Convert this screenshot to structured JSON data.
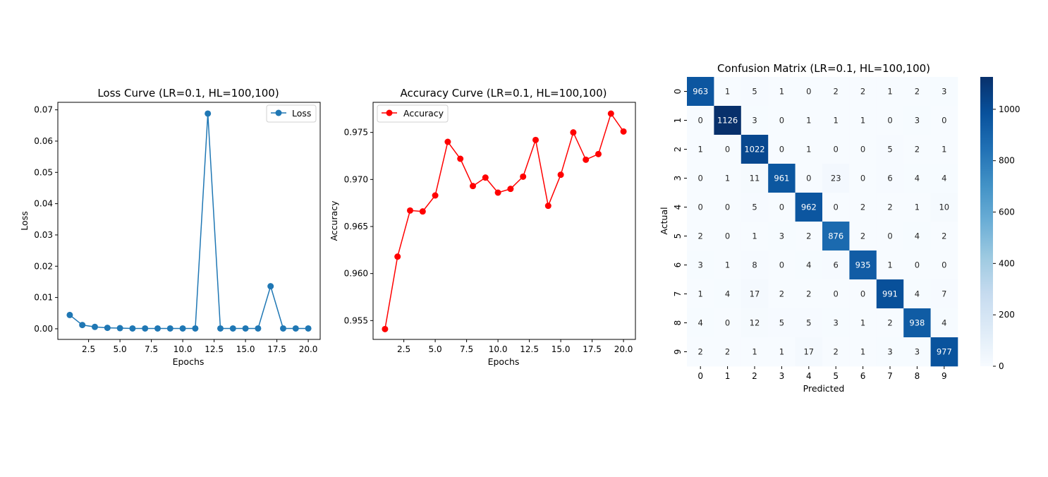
{
  "chart_data": [
    {
      "type": "line",
      "title": "Loss Curve (LR=0.1, HL=100,100)",
      "xlabel": "Epochs",
      "ylabel": "Loss",
      "xlim": [
        0.05,
        20.95
      ],
      "ylim": [
        -0.0034,
        0.0724
      ],
      "xticks": [
        2.5,
        5.0,
        7.5,
        10.0,
        12.5,
        15.0,
        17.5,
        20.0
      ],
      "xtick_labels": [
        "2.5",
        "5.0",
        "7.5",
        "10.0",
        "12.5",
        "15.0",
        "17.5",
        "20.0"
      ],
      "yticks": [
        0.0,
        0.01,
        0.02,
        0.03,
        0.04,
        0.05,
        0.06,
        0.07
      ],
      "ytick_labels": [
        "0.00",
        "0.01",
        "0.02",
        "0.03",
        "0.04",
        "0.05",
        "0.06",
        "0.07"
      ],
      "x": [
        1,
        2,
        3,
        4,
        5,
        6,
        7,
        8,
        9,
        10,
        11,
        12,
        13,
        14,
        15,
        16,
        17,
        18,
        19,
        20
      ],
      "series": [
        {
          "name": "Loss",
          "color": "#1f77b4",
          "values": [
            0.0044,
            0.0012,
            0.0006,
            0.0003,
            0.0002,
            0.0001,
            0.0001,
            0.0001,
            0.0001,
            0.0001,
            0.0001,
            0.0688,
            0.0001,
            0.0001,
            0.0001,
            0.0001,
            0.0136,
            0.0001,
            0.0001,
            0.0001
          ]
        }
      ],
      "legend": "upper right",
      "grid": false
    },
    {
      "type": "line",
      "title": "Accuracy Curve (LR=0.1, HL=100,100)",
      "xlabel": "Epochs",
      "ylabel": "Accuracy",
      "xlim": [
        0.05,
        20.95
      ],
      "ylim": [
        0.953,
        0.9782
      ],
      "xticks": [
        2.5,
        5.0,
        7.5,
        10.0,
        12.5,
        15.0,
        17.5,
        20.0
      ],
      "xtick_labels": [
        "2.5",
        "5.0",
        "7.5",
        "10.0",
        "12.5",
        "15.0",
        "17.5",
        "20.0"
      ],
      "yticks": [
        0.955,
        0.96,
        0.965,
        0.97,
        0.975
      ],
      "ytick_labels": [
        "0.955",
        "0.960",
        "0.965",
        "0.970",
        "0.975"
      ],
      "x": [
        1,
        2,
        3,
        4,
        5,
        6,
        7,
        8,
        9,
        10,
        11,
        12,
        13,
        14,
        15,
        16,
        17,
        18,
        19,
        20
      ],
      "series": [
        {
          "name": "Accuracy",
          "color": "#ff0000",
          "values": [
            0.9541,
            0.9618,
            0.9667,
            0.9666,
            0.9683,
            0.974,
            0.9722,
            0.9693,
            0.9702,
            0.9686,
            0.969,
            0.9703,
            0.9742,
            0.9672,
            0.9705,
            0.975,
            0.9721,
            0.9727,
            0.977,
            0.9751
          ]
        }
      ],
      "legend": "upper left",
      "grid": false
    },
    {
      "type": "heatmap",
      "title": "Confusion Matrix (LR=0.1, HL=100,100)",
      "xlabel": "Predicted",
      "ylabel": "Actual",
      "x_labels": [
        "0",
        "1",
        "2",
        "3",
        "4",
        "5",
        "6",
        "7",
        "8",
        "9"
      ],
      "y_labels": [
        "0",
        "1",
        "2",
        "3",
        "4",
        "5",
        "6",
        "7",
        "8",
        "9"
      ],
      "matrix": [
        [
          963,
          1,
          5,
          1,
          0,
          2,
          2,
          1,
          2,
          3
        ],
        [
          0,
          1126,
          3,
          0,
          1,
          1,
          1,
          0,
          3,
          0
        ],
        [
          1,
          0,
          1022,
          0,
          1,
          0,
          0,
          5,
          2,
          1
        ],
        [
          0,
          1,
          11,
          961,
          0,
          23,
          0,
          6,
          4,
          4
        ],
        [
          0,
          0,
          5,
          0,
          962,
          0,
          2,
          2,
          1,
          10
        ],
        [
          2,
          0,
          1,
          3,
          2,
          876,
          2,
          0,
          4,
          2
        ],
        [
          3,
          1,
          8,
          0,
          4,
          6,
          935,
          1,
          0,
          0
        ],
        [
          1,
          4,
          17,
          2,
          2,
          0,
          0,
          991,
          4,
          7
        ],
        [
          4,
          0,
          12,
          5,
          5,
          3,
          1,
          2,
          938,
          4
        ],
        [
          2,
          2,
          1,
          1,
          17,
          2,
          1,
          3,
          3,
          977
        ]
      ],
      "colormap": "Blues",
      "vmin": 0,
      "vmax": 1126,
      "colorbar_ticks": [
        0,
        200,
        400,
        600,
        800,
        1000
      ],
      "colorbar_tick_labels": [
        "0",
        "200",
        "400",
        "600",
        "800",
        "1000"
      ]
    }
  ]
}
